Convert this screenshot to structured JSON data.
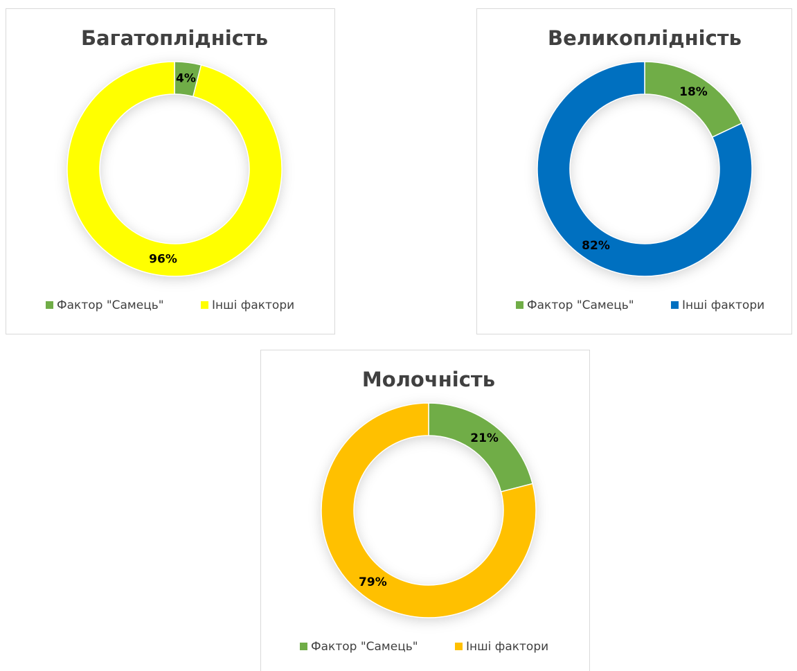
{
  "chart_data": [
    {
      "type": "donut",
      "title": "Багатоплідність",
      "categories": [
        "Фактор \"Самець\"",
        "Інші фактори"
      ],
      "values": [
        4,
        96
      ],
      "value_labels": [
        "4%",
        "96%"
      ],
      "colors": [
        "#70ad47",
        "#ffff00"
      ],
      "legend": "bottom"
    },
    {
      "type": "donut",
      "title": "Великоплідність",
      "categories": [
        "Фактор \"Самець\"",
        "Інші фактори"
      ],
      "values": [
        18,
        82
      ],
      "value_labels": [
        "18%",
        "82%"
      ],
      "colors": [
        "#70ad47",
        "#0070c0"
      ],
      "legend": "bottom"
    },
    {
      "type": "donut",
      "title": "Молочність",
      "categories": [
        "Фактор \"Самець\"",
        "Інші фактори"
      ],
      "values": [
        21,
        79
      ],
      "value_labels": [
        "21%",
        "79%"
      ],
      "colors": [
        "#70ad47",
        "#ffc000"
      ],
      "legend": "bottom"
    }
  ]
}
